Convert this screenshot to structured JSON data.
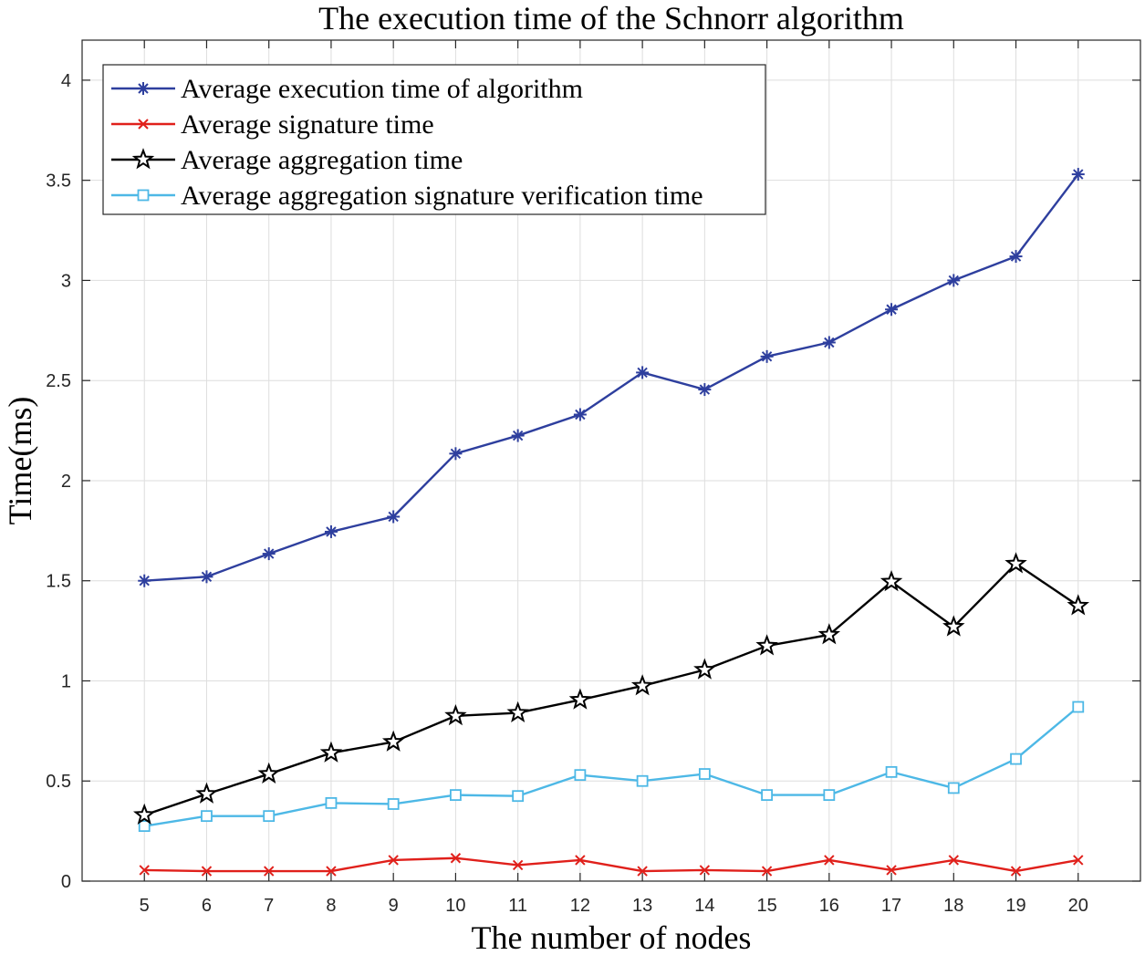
{
  "chart_data": {
    "type": "line",
    "title": "The execution time of the Schnorr algorithm",
    "xlabel": "The number of nodes",
    "ylabel": "Time(ms)",
    "x": [
      5,
      6,
      7,
      8,
      9,
      10,
      11,
      12,
      13,
      14,
      15,
      16,
      17,
      18,
      19,
      20
    ],
    "x_tick_labels": [
      "5",
      "6",
      "7",
      "8",
      "9",
      "10",
      "11",
      "12",
      "13",
      "14",
      "15",
      "16",
      "17",
      "18",
      "19",
      "20"
    ],
    "xlim": [
      4,
      21
    ],
    "ylim": [
      0,
      4.2
    ],
    "y_ticks": [
      0,
      0.5,
      1,
      1.5,
      2,
      2.5,
      3,
      3.5,
      4
    ],
    "y_tick_labels": [
      "0",
      "0.5",
      "1",
      "1.5",
      "2",
      "2.5",
      "3",
      "3.5",
      "4"
    ],
    "grid": true,
    "legend_position": "top-left",
    "series": [
      {
        "name": "Average execution time of algorithm",
        "color": "#2e3f9e",
        "marker": "asterisk",
        "values": [
          1.5,
          1.52,
          1.635,
          1.745,
          1.82,
          2.135,
          2.225,
          2.33,
          2.54,
          2.455,
          2.62,
          2.69,
          2.855,
          3.0,
          3.12,
          3.53
        ]
      },
      {
        "name": "Average signature time",
        "color": "#e0201b",
        "marker": "x",
        "values": [
          0.055,
          0.05,
          0.05,
          0.05,
          0.105,
          0.115,
          0.08,
          0.105,
          0.05,
          0.055,
          0.05,
          0.105,
          0.055,
          0.105,
          0.05,
          0.105
        ]
      },
      {
        "name": "Average aggregation time",
        "color": "#000000",
        "marker": "pentagram",
        "values": [
          0.33,
          0.435,
          0.535,
          0.64,
          0.695,
          0.825,
          0.84,
          0.905,
          0.975,
          1.055,
          1.175,
          1.23,
          1.495,
          1.27,
          1.585,
          1.375
        ]
      },
      {
        "name": "Average aggregation signature verification time",
        "color": "#4db8e6",
        "marker": "square",
        "values": [
          0.275,
          0.325,
          0.325,
          0.39,
          0.385,
          0.43,
          0.425,
          0.53,
          0.5,
          0.535,
          0.43,
          0.43,
          0.545,
          0.465,
          0.61,
          0.87
        ]
      }
    ]
  }
}
